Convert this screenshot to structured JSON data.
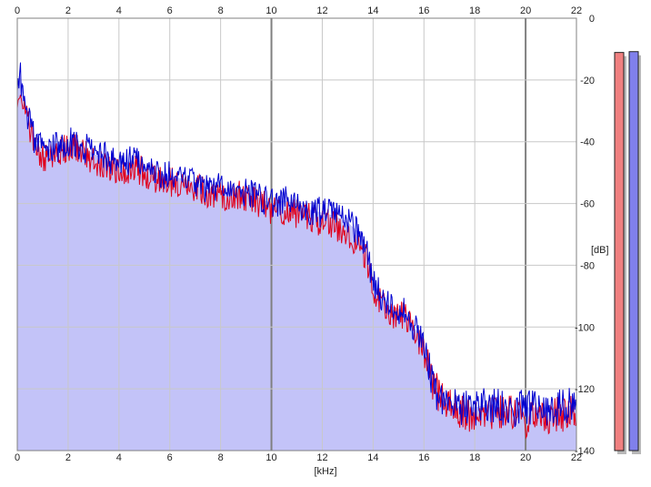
{
  "colors": {
    "background": "#ffffff",
    "plot_fill": "#c3c3f8",
    "grid_major": "#808080",
    "grid_minor": "#c8c8c8",
    "left_channel": "#e0001c",
    "right_channel": "#0000d0",
    "meter_left": "#f08080",
    "meter_right": "#8080ec",
    "meter_shadow": "#b8b8b8"
  },
  "chart_data": {
    "type": "area",
    "xlabel": "[kHz]",
    "ylabel": "[dB]",
    "xlim": [
      0,
      22
    ],
    "ylim": [
      -140,
      0
    ],
    "x_ticks": [
      "0",
      "2",
      "4",
      "6",
      "8",
      "10",
      "12",
      "14",
      "16",
      "18",
      "20",
      "22"
    ],
    "y_ticks": [
      "0",
      "-20",
      "-40",
      "-60",
      "-80",
      "-100",
      "-120",
      "-140"
    ],
    "grid": true,
    "series": [
      {
        "channel": "left",
        "color": "#e0001c",
        "x": [
          0,
          0.1,
          0.3,
          0.5,
          0.7,
          1,
          1.5,
          2,
          2.5,
          3,
          3.5,
          4,
          4.5,
          5,
          5.5,
          6,
          6.5,
          7,
          7.5,
          8,
          8.5,
          9,
          9.5,
          10,
          10.5,
          11,
          11.5,
          12,
          12.5,
          13,
          13.5,
          13.8,
          14,
          14.3,
          14.6,
          15,
          15.3,
          15.6,
          16,
          16.3,
          16.6,
          17,
          17.5,
          18,
          18.5,
          19,
          19.5,
          20,
          20.5,
          21,
          21.5,
          22
        ],
        "y": [
          -24,
          -22,
          -30,
          -36,
          -42,
          -45,
          -44,
          -42,
          -43,
          -46,
          -47,
          -50,
          -48,
          -50,
          -52,
          -53,
          -54,
          -55,
          -57,
          -58,
          -57,
          -58,
          -60,
          -62,
          -62,
          -63,
          -64,
          -66,
          -67,
          -70,
          -74,
          -80,
          -87,
          -92,
          -95,
          -96,
          -97,
          -101,
          -107,
          -118,
          -122,
          -126,
          -128,
          -130,
          -127,
          -128,
          -128,
          -130,
          -128,
          -129,
          -128,
          -128
        ]
      },
      {
        "channel": "right",
        "color": "#0000d0",
        "x": [
          0,
          0.1,
          0.3,
          0.5,
          0.7,
          1,
          1.5,
          2,
          2.5,
          3,
          3.5,
          4,
          4.5,
          5,
          5.5,
          6,
          6.5,
          7,
          7.5,
          8,
          8.5,
          9,
          9.5,
          10,
          10.5,
          11,
          11.5,
          12,
          12.5,
          13,
          13.5,
          13.8,
          14,
          14.3,
          14.6,
          15,
          15.3,
          15.6,
          16,
          16.3,
          16.6,
          17,
          17.5,
          18,
          18.5,
          19,
          19.5,
          20,
          20.5,
          21,
          21.5,
          22
        ],
        "y": [
          -20,
          -18,
          -28,
          -34,
          -40,
          -43,
          -42,
          -40,
          -41,
          -44,
          -45,
          -48,
          -46,
          -48,
          -50,
          -51,
          -52,
          -53,
          -55,
          -55,
          -55,
          -56,
          -58,
          -60,
          -59,
          -60,
          -62,
          -63,
          -64,
          -66,
          -70,
          -78,
          -85,
          -90,
          -93,
          -94,
          -96,
          -100,
          -104,
          -118,
          -124,
          -125,
          -126,
          -126,
          -125,
          -126,
          -127,
          -126,
          -126,
          -126,
          -126,
          -125
        ]
      }
    ]
  },
  "level_meters": {
    "left_level": 0.957,
    "right_level": 0.959
  }
}
